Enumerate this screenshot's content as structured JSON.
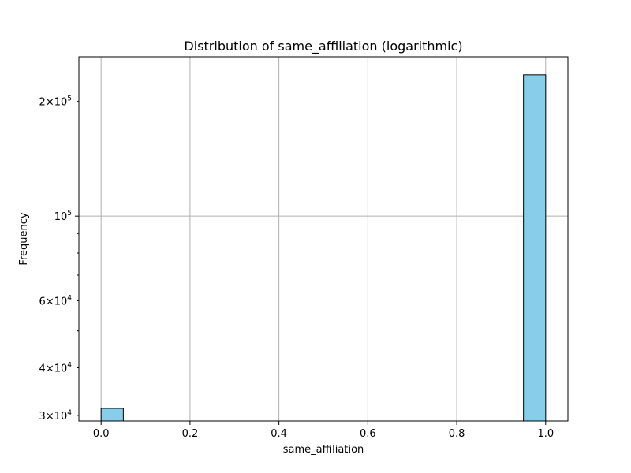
{
  "chart_data": {
    "type": "bar",
    "title": "Distribution of same_affiliation (logarithmic)",
    "xlabel": "same_affiliation",
    "ylabel": "Frequency",
    "xlim": [
      -0.05,
      1.05
    ],
    "ylim": [
      29000,
      262000
    ],
    "y_scale": "log",
    "grid": true,
    "bar_color": "#87ceeb",
    "edge_color": "#000000",
    "bins": [
      {
        "x0": 0.0,
        "x1": 0.05,
        "value": 31300
      },
      {
        "x0": 0.95,
        "x1": 1.0,
        "value": 235000
      }
    ],
    "x_ticks": [
      {
        "value": 0.0,
        "label": "0.0"
      },
      {
        "value": 0.2,
        "label": "0.2"
      },
      {
        "value": 0.4,
        "label": "0.4"
      },
      {
        "value": 0.6,
        "label": "0.6"
      },
      {
        "value": 0.8,
        "label": "0.8"
      },
      {
        "value": 1.0,
        "label": "1.0"
      }
    ],
    "y_major_ticks": [
      {
        "value": 100000,
        "base": "10",
        "exp": "5"
      }
    ],
    "y_minor_ticks": [
      {
        "value": 30000,
        "coef": "3",
        "base": "10",
        "exp": "4"
      },
      {
        "value": 40000,
        "coef": "4",
        "base": "10",
        "exp": "4"
      },
      {
        "value": 50000
      },
      {
        "value": 60000,
        "coef": "6",
        "base": "10",
        "exp": "4"
      },
      {
        "value": 70000
      },
      {
        "value": 80000
      },
      {
        "value": 90000
      },
      {
        "value": 200000,
        "coef": "2",
        "base": "10",
        "exp": "5"
      }
    ]
  }
}
